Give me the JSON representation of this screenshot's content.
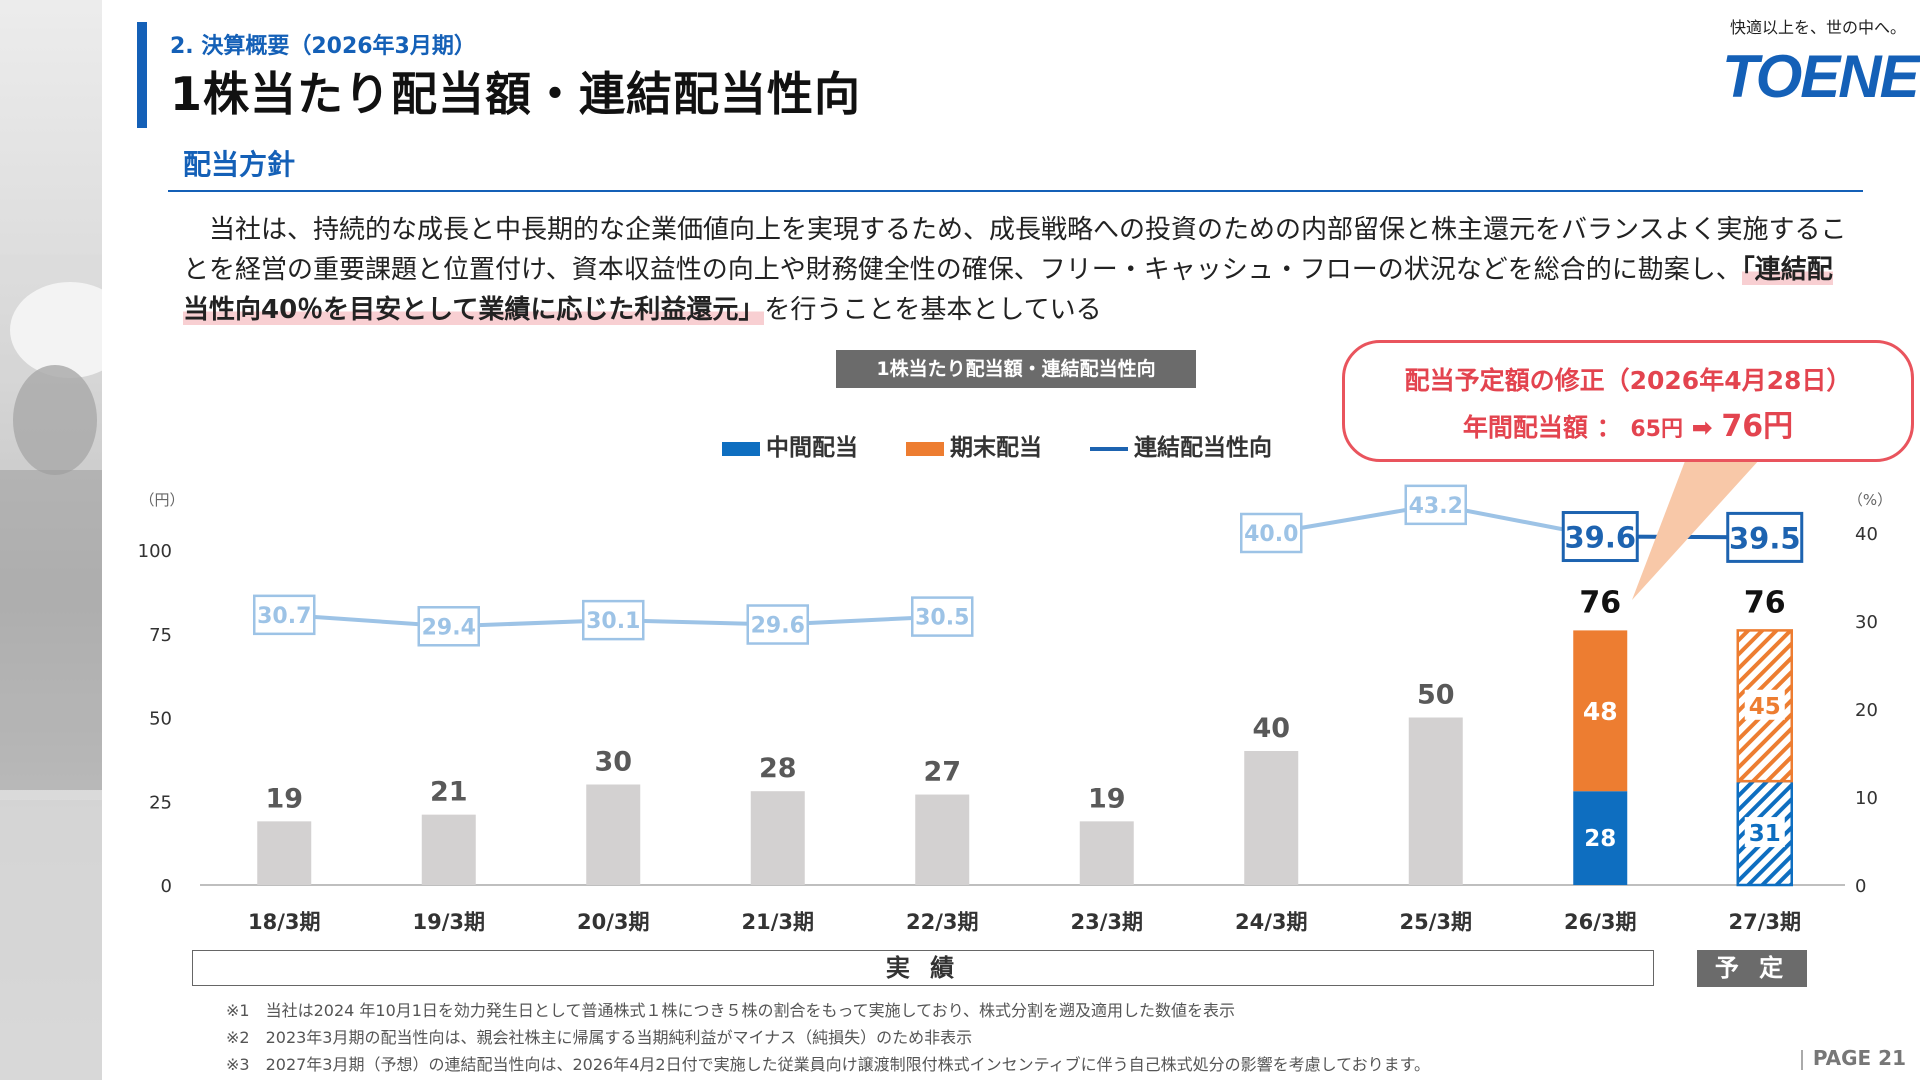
{
  "header": {
    "section_label": "2. 決算概要（2026年3月期）",
    "page_title": "1株当たり配当額・連結配当性向",
    "tagline": "快適以上を、世の中へ。",
    "logo_text": "TOENEC"
  },
  "policy": {
    "heading": "配当方針",
    "text_before": "　当社は、持続的な成長と中長期的な企業価値向上を実現するため、成長戦略への投資のための内部留保と株主還元をバランスよく実施することを経営の重要課題と位置付け、資本収益性の向上や財務健全性の確保、フリー・キャッシュ・フローの状況などを総合的に勘案し、",
    "text_highlight": "「連結配当性向40％を目安として業績に応じた利益還元」",
    "text_after": "を行うことを基本としている"
  },
  "callout": {
    "line1": "配当予定額の修正（2026年4月28日）",
    "line2_label": "年間配当額 ：",
    "line2_from": "65円",
    "line2_arrow": "➡",
    "line2_to": "76円"
  },
  "period_labels": {
    "actual": "実 績",
    "plan": "予 定"
  },
  "notes": [
    "※1　当社は2024 年10月1日を効力発生日として普通株式１株につき５株の割合をもって実施しており、株式分割を遡及適用した数値を表示",
    "※2　2023年3月期の配当性向は、親会社株主に帰属する当期純利益がマイナス（純損失）のため非表示",
    "※3　2027年3月期（予想）の連結配当性向は、2026年4月2日付で実施した従業員向け譲渡制限付株式インセンティブに伴う自己株式処分の影響を考慮しております。"
  ],
  "page_number": "PAGE 21",
  "colors": {
    "blue": "#0e6ec0",
    "orange": "#ed7d31",
    "gray_bar": "#d3d1d1",
    "ratio_line": "#9dc3e6",
    "ratio_line_dark": "#1d63b0",
    "accent_red": "#e3444f"
  },
  "chart_data": {
    "type": "bar",
    "title": "1株当たり配当額・連結配当性向",
    "categories": [
      "18/3期",
      "19/3期",
      "20/3期",
      "21/3期",
      "22/3期",
      "23/3期",
      "24/3期",
      "25/3期",
      "26/3期",
      "27/3期"
    ],
    "series": [
      {
        "name": "中間配当",
        "values": [
          null,
          null,
          null,
          null,
          null,
          null,
          null,
          null,
          28,
          31
        ]
      },
      {
        "name": "期末配当",
        "values": [
          null,
          null,
          null,
          null,
          null,
          null,
          null,
          null,
          48,
          45
        ]
      },
      {
        "name": "連結配当性向",
        "type": "line",
        "axis": "right",
        "values": [
          30.7,
          29.4,
          30.1,
          29.6,
          30.5,
          null,
          40.0,
          43.2,
          39.6,
          39.5
        ]
      }
    ],
    "totals": [
      19,
      21,
      30,
      28,
      27,
      19,
      40,
      50,
      76,
      76
    ],
    "value_labels": [
      "19",
      "21",
      "30",
      "28",
      "27",
      "19",
      "40",
      "50",
      "76",
      "76"
    ],
    "ratio_labels": [
      "30.7",
      "29.4",
      "30.1",
      "29.6",
      "30.5",
      "",
      "40.0",
      "43.2",
      "39.6",
      "39.5"
    ],
    "forecast_index": 9,
    "y_left": {
      "unit": "（円）",
      "ticks": [
        "0",
        "25",
        "50",
        "75",
        "100"
      ],
      "min": 0,
      "max": 100
    },
    "y_right": {
      "unit": "（%）",
      "ticks": [
        "0",
        "10",
        "20",
        "30",
        "40"
      ],
      "min": 0,
      "max": 40
    },
    "legend": [
      "中間配当",
      "期末配当",
      "連結配当性向"
    ],
    "legend_position": "top"
  }
}
